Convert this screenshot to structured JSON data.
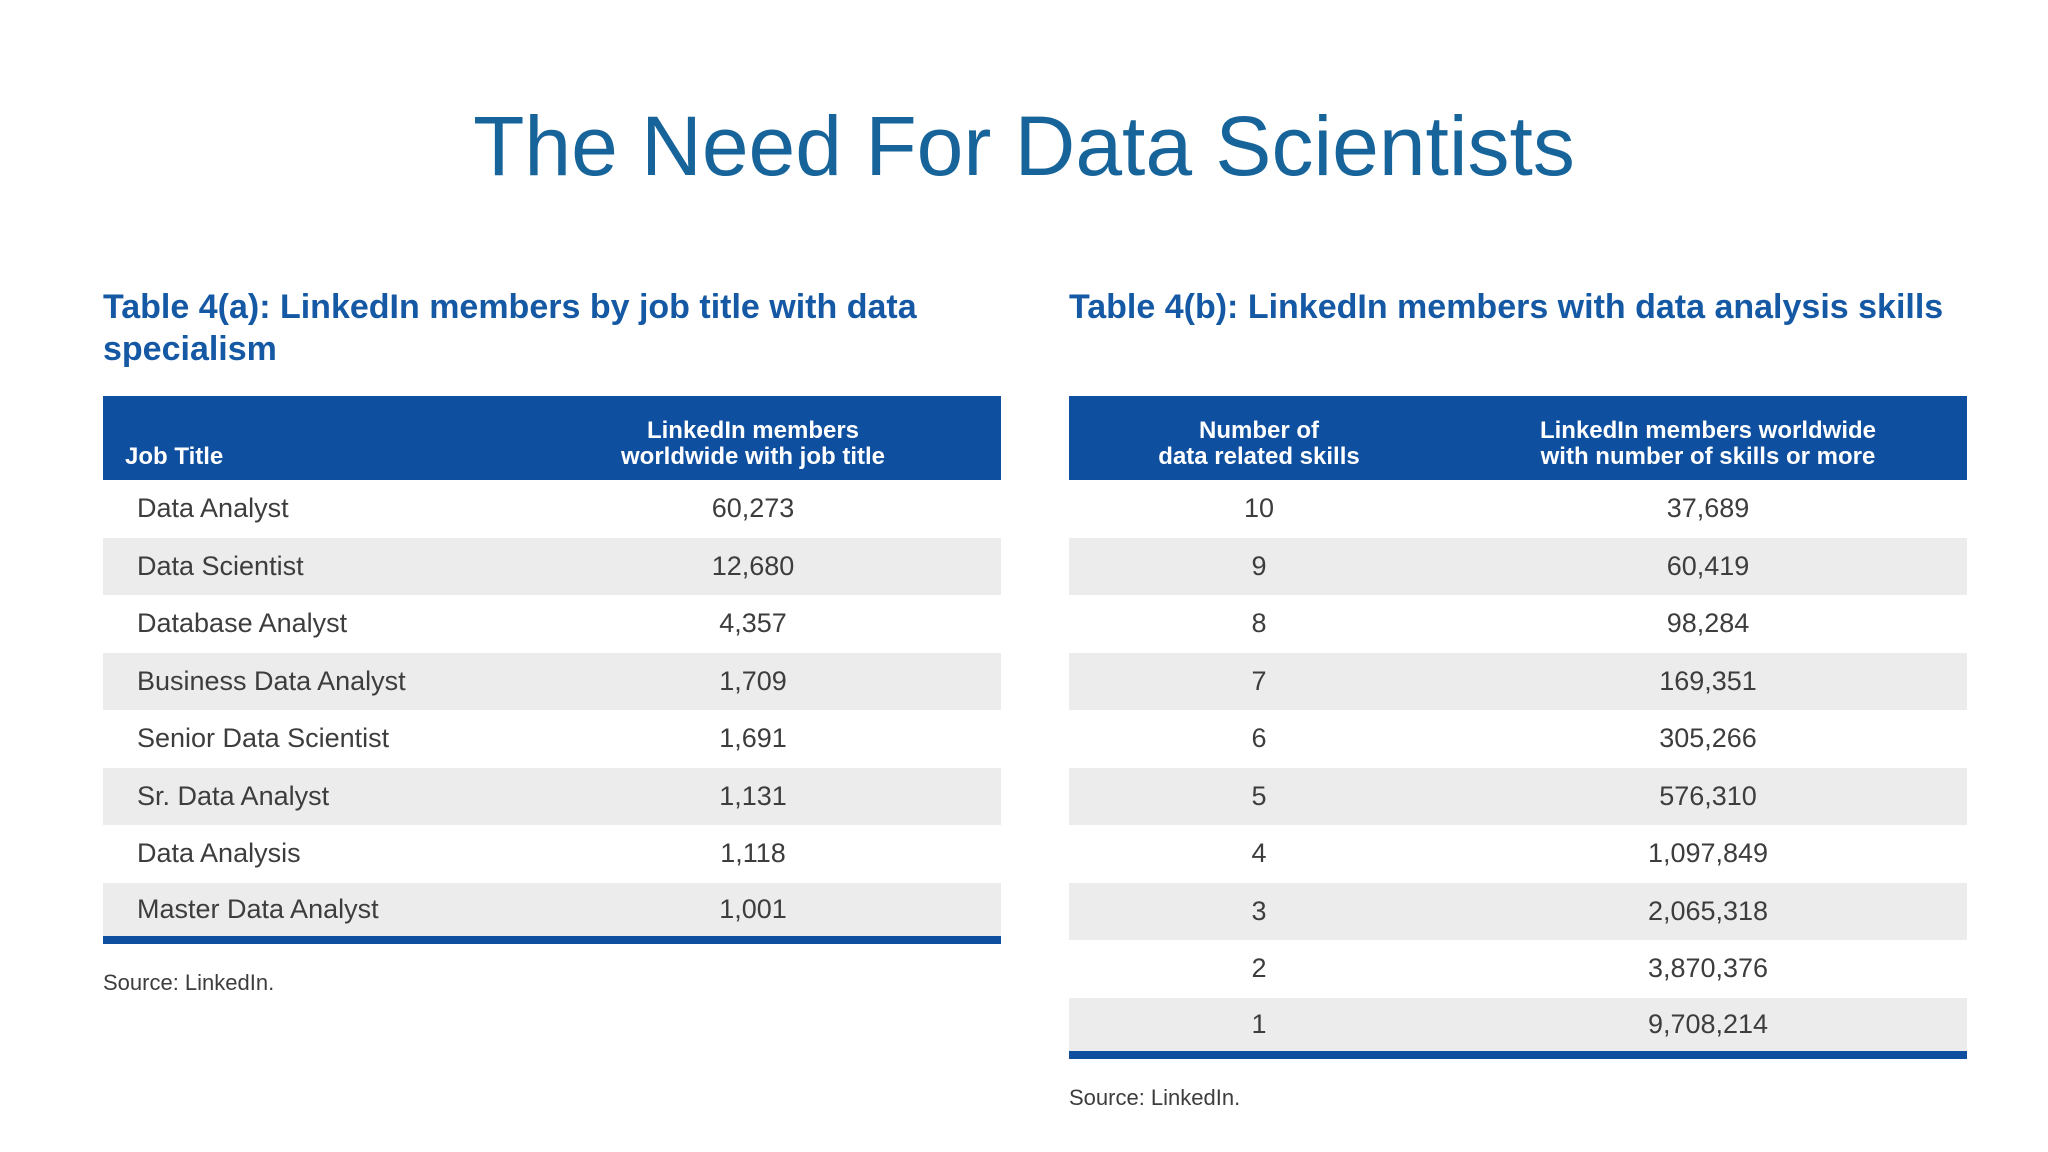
{
  "slide": {
    "title": "The Need For Data Scientists"
  },
  "table_a": {
    "caption": "Table 4(a): LinkedIn members by job title with data specialism",
    "headers": {
      "job_title": "Job Title",
      "members_line1": "LinkedIn members",
      "members_line2": "worldwide with job title"
    },
    "rows": [
      {
        "job_title": "Data Analyst",
        "members": "60,273"
      },
      {
        "job_title": "Data Scientist",
        "members": "12,680"
      },
      {
        "job_title": "Database Analyst",
        "members": "4,357"
      },
      {
        "job_title": "Business Data Analyst",
        "members": "1,709"
      },
      {
        "job_title": "Senior Data Scientist",
        "members": "1,691"
      },
      {
        "job_title": "Sr. Data Analyst",
        "members": "1,131"
      },
      {
        "job_title": "Data Analysis",
        "members": "1,118"
      },
      {
        "job_title": "Master Data Analyst",
        "members": "1,001"
      }
    ],
    "source": "Source: LinkedIn."
  },
  "table_b": {
    "caption": "Table 4(b): LinkedIn members with data analysis skills",
    "headers": {
      "skills_line1": "Number of",
      "skills_line2": "data related skills",
      "members_line1": "LinkedIn members worldwide",
      "members_line2": "with number of skills or more"
    },
    "rows": [
      {
        "skills": "10",
        "members": "37,689"
      },
      {
        "skills": "9",
        "members": "60,419"
      },
      {
        "skills": "8",
        "members": "98,284"
      },
      {
        "skills": "7",
        "members": "169,351"
      },
      {
        "skills": "6",
        "members": "305,266"
      },
      {
        "skills": "5",
        "members": "576,310"
      },
      {
        "skills": "4",
        "members": "1,097,849"
      },
      {
        "skills": "3",
        "members": "2,065,318"
      },
      {
        "skills": "2",
        "members": "3,870,376"
      },
      {
        "skills": "1",
        "members": "9,708,214"
      }
    ],
    "source": "Source: LinkedIn."
  },
  "colors": {
    "title": "#17649a",
    "caption": "#1559a5",
    "header_bg": "#0f4fa0",
    "stripe": "#ececec"
  }
}
